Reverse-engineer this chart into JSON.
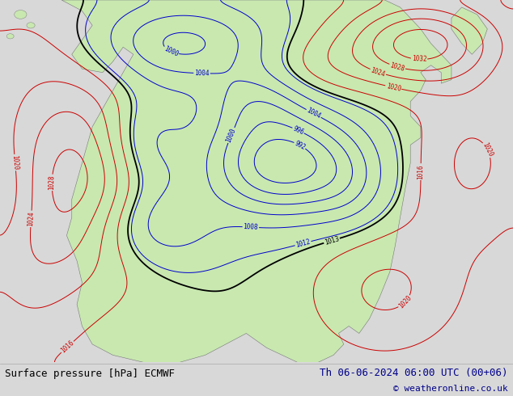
{
  "title_left": "Surface pressure [hPa] ECMWF",
  "title_right": "Th 06-06-2024 06:00 UTC (00+06)",
  "copyright": "© weatheronline.co.uk",
  "bg_color": "#d8d8d8",
  "map_bg_color": "#d8d8d8",
  "land_color": "#c8e8b0",
  "ocean_color": "#d8d8d8",
  "isobar_blue": "#0000cc",
  "isobar_red": "#cc0000",
  "isobar_black": "#000000",
  "font_family": "monospace",
  "title_fontsize": 9,
  "copyright_fontsize": 8,
  "figsize": [
    6.34,
    4.9
  ],
  "dpi": 100
}
